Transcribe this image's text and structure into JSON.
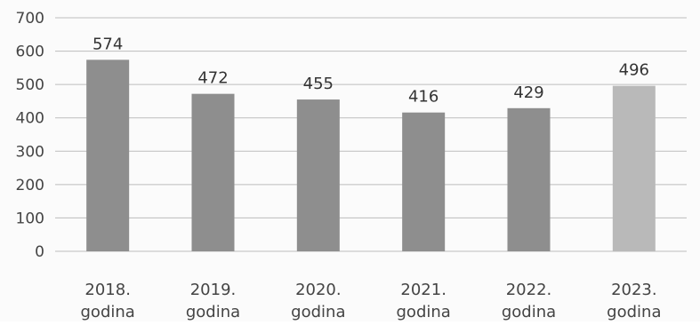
{
  "chart_data": {
    "type": "bar",
    "categories": [
      [
        "2018.",
        "godina"
      ],
      [
        "2019.",
        "godina"
      ],
      [
        "2020.",
        "godina"
      ],
      [
        "2021.",
        "godina"
      ],
      [
        "2022.",
        "godina"
      ],
      [
        "2023.",
        "godina"
      ]
    ],
    "values": [
      574,
      472,
      455,
      416,
      429,
      496
    ],
    "value_labels": [
      "574",
      "472",
      "455",
      "416",
      "429",
      "496"
    ],
    "y_ticks": [
      "0",
      "100",
      "200",
      "300",
      "400",
      "500",
      "600",
      "700"
    ],
    "ylim": [
      0,
      700
    ],
    "grid": true,
    "legend": false,
    "title": "",
    "xlabel": "",
    "ylabel": "",
    "colors": {
      "bar": "#8e8e8e",
      "bar_last": "#b9b9b9",
      "grid": "#bdbdbd",
      "axis_text": "#444444",
      "value_label": "#333333"
    }
  }
}
